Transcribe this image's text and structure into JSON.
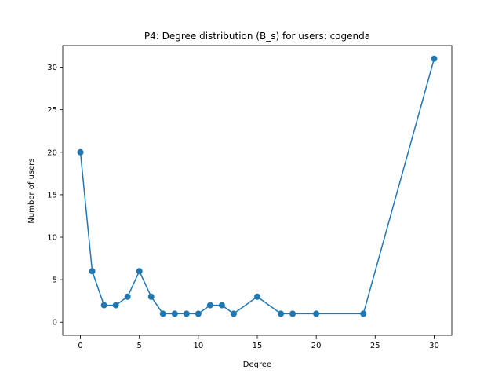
{
  "chart_data": {
    "type": "line",
    "title": "P4: Degree distribution (B_s) for users: cogenda",
    "xlabel": "Degree",
    "ylabel": "Number of users",
    "xlim": [
      -1.5,
      31.5
    ],
    "ylim": [
      -1.55,
      32.55
    ],
    "xticks": [
      0,
      5,
      10,
      15,
      20,
      25,
      30
    ],
    "yticks": [
      0,
      5,
      10,
      15,
      20,
      25,
      30
    ],
    "grid": false,
    "series": [
      {
        "color": "#1f77b4",
        "marker": "circle",
        "x": [
          0,
          1,
          2,
          3,
          4,
          5,
          6,
          7,
          8,
          9,
          10,
          11,
          12,
          13,
          15,
          17,
          18,
          20,
          24,
          30
        ],
        "y": [
          20,
          6,
          2,
          2,
          3,
          6,
          3,
          1,
          1,
          1,
          1,
          2,
          2,
          1,
          3,
          1,
          1,
          1,
          1,
          31
        ]
      }
    ]
  }
}
